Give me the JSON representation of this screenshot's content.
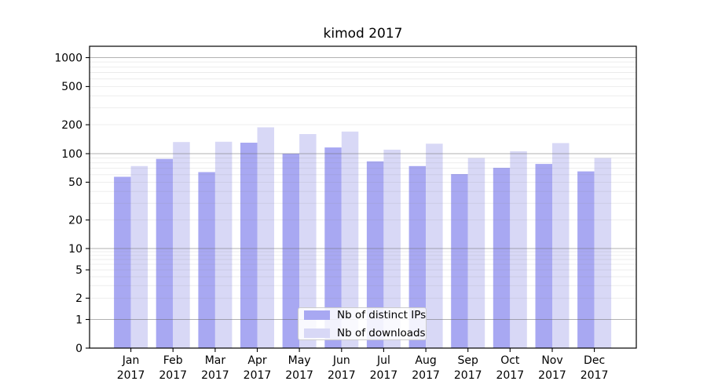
{
  "title": "kimod 2017",
  "chart_data": {
    "type": "bar",
    "title": "kimod 2017",
    "categories": [
      "Jan 2017",
      "Feb 2017",
      "Mar 2017",
      "Apr 2017",
      "May 2017",
      "Jun 2017",
      "Jul 2017",
      "Aug 2017",
      "Sep 2017",
      "Oct 2017",
      "Nov 2017",
      "Dec 2017"
    ],
    "x_tick_month_labels": [
      "Jan",
      "Feb",
      "Mar",
      "Apr",
      "May",
      "Jun",
      "Jul",
      "Aug",
      "Sep",
      "Oct",
      "Nov",
      "Dec"
    ],
    "x_tick_year_label": "2017",
    "series": [
      {
        "name": "Nb of distinct IPs",
        "color": "#a8a8f2",
        "values": [
          57,
          88,
          64,
          130,
          100,
          116,
          83,
          74,
          61,
          71,
          78,
          65
        ]
      },
      {
        "name": "Nb of downloads",
        "color": "#d8d8f6",
        "values": [
          74,
          132,
          133,
          188,
          160,
          170,
          110,
          127,
          90,
          106,
          129,
          90
        ]
      }
    ],
    "xlabel": "",
    "ylabel": "",
    "y_scale": "symlog",
    "y_ticks": [
      0,
      1,
      2,
      5,
      10,
      20,
      50,
      100,
      200,
      500,
      1000
    ],
    "ylim": [
      0,
      1300
    ],
    "grid": true,
    "legend_position": "lower center",
    "colors": {
      "frame": "#000000",
      "major_grid": "#b2b2b2",
      "minor_grid": "#e9e9e9",
      "background": "#ffffff",
      "text": "#000000"
    }
  }
}
